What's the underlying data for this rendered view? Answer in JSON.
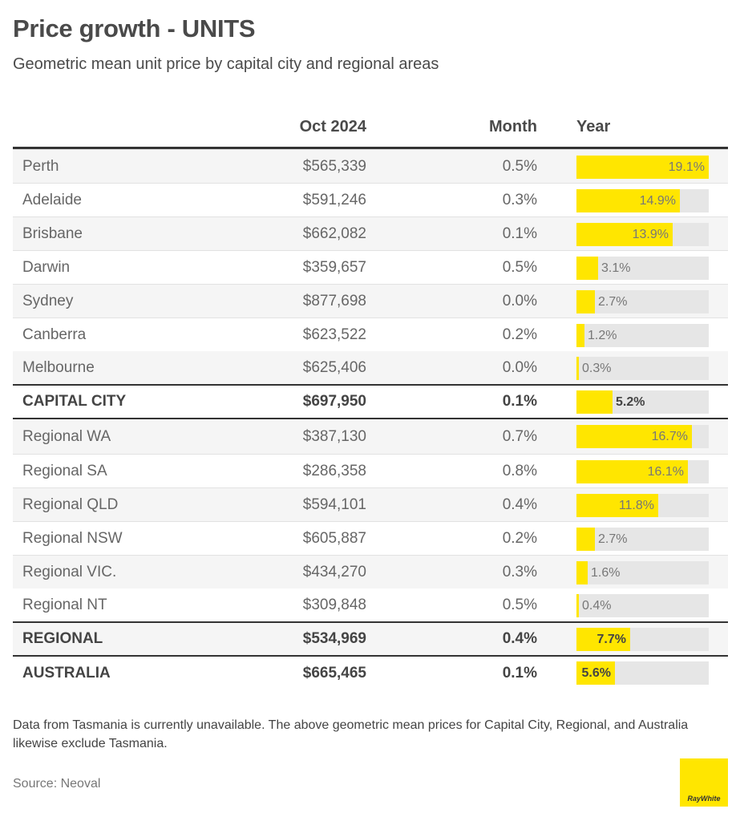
{
  "header": {
    "title": "Price growth  - UNITS",
    "subtitle": "Geometric mean unit price by capital city and regional areas"
  },
  "chart_data": {
    "type": "table",
    "columns": [
      "Oct 2024",
      "Month",
      "Year"
    ],
    "bar_scale_max": 19.1,
    "rows": [
      {
        "name": "Perth",
        "price": "$565,339",
        "month": "0.5%",
        "year": "19.1%",
        "year_value": 19.1,
        "kind": "city"
      },
      {
        "name": "Adelaide",
        "price": "$591,246",
        "month": "0.3%",
        "year": "14.9%",
        "year_value": 14.9,
        "kind": "city"
      },
      {
        "name": "Brisbane",
        "price": "$662,082",
        "month": "0.1%",
        "year": "13.9%",
        "year_value": 13.9,
        "kind": "city"
      },
      {
        "name": "Darwin",
        "price": "$359,657",
        "month": "0.5%",
        "year": "3.1%",
        "year_value": 3.1,
        "kind": "city"
      },
      {
        "name": "Sydney",
        "price": "$877,698",
        "month": "0.0%",
        "year": "2.7%",
        "year_value": 2.7,
        "kind": "city"
      },
      {
        "name": "Canberra",
        "price": "$623,522",
        "month": "0.2%",
        "year": "1.2%",
        "year_value": 1.2,
        "kind": "city"
      },
      {
        "name": "Melbourne",
        "price": "$625,406",
        "month": "0.0%",
        "year": "0.3%",
        "year_value": 0.3,
        "kind": "city"
      },
      {
        "name": "CAPITAL CITY",
        "price": "$697,950",
        "month": "0.1%",
        "year": "5.2%",
        "year_value": 5.2,
        "kind": "summary"
      },
      {
        "name": "Regional WA",
        "price": "$387,130",
        "month": "0.7%",
        "year": "16.7%",
        "year_value": 16.7,
        "kind": "regional"
      },
      {
        "name": "Regional SA",
        "price": "$286,358",
        "month": "0.8%",
        "year": "16.1%",
        "year_value": 16.1,
        "kind": "regional"
      },
      {
        "name": "Regional QLD",
        "price": "$594,101",
        "month": "0.4%",
        "year": "11.8%",
        "year_value": 11.8,
        "kind": "regional"
      },
      {
        "name": "Regional NSW",
        "price": "$605,887",
        "month": "0.2%",
        "year": "2.7%",
        "year_value": 2.7,
        "kind": "regional"
      },
      {
        "name": "Regional VIC.",
        "price": "$434,270",
        "month": "0.3%",
        "year": "1.6%",
        "year_value": 1.6,
        "kind": "regional"
      },
      {
        "name": "Regional NT",
        "price": "$309,848",
        "month": "0.5%",
        "year": "0.4%",
        "year_value": 0.4,
        "kind": "regional"
      },
      {
        "name": "REGIONAL",
        "price": "$534,969",
        "month": "0.4%",
        "year": "7.7%",
        "year_value": 7.7,
        "kind": "summary"
      },
      {
        "name": "AUSTRALIA",
        "price": "$665,465",
        "month": "0.1%",
        "year": "5.6%",
        "year_value": 5.6,
        "kind": "summary"
      }
    ]
  },
  "footer": {
    "note": "Data from Tasmania is currently unavailable. The above geometric mean prices for Capital City, Regional, and Australia likewise exclude Tasmania.",
    "source": "Source: Neoval",
    "logo_text": "RayWhite"
  },
  "colors": {
    "bar_fill": "#ffe600",
    "bar_track": "#e6e6e6",
    "rule": "#333333",
    "logo_bg": "#ffe600"
  }
}
